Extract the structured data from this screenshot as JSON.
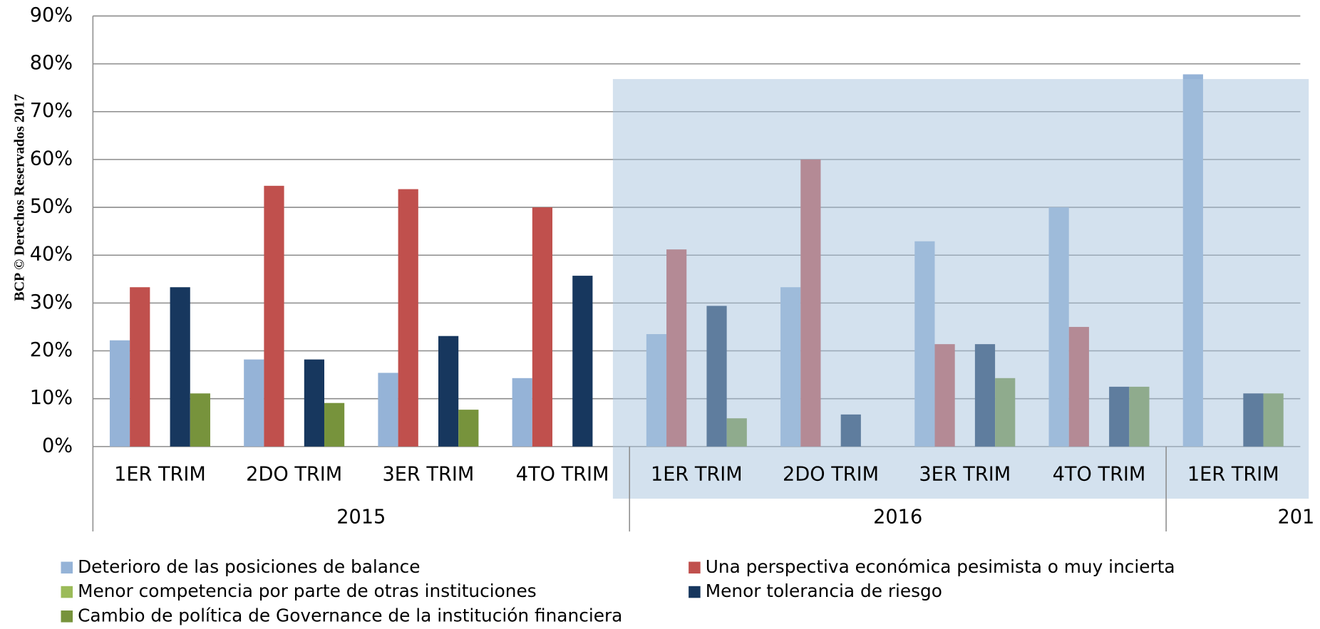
{
  "chart_data": {
    "type": "bar",
    "annotation": "BCP © Derechos Reservados 2017",
    "categories": [
      "1ER TRIM",
      "2DO TRIM",
      "3ER TRIM",
      "4TO TRIM",
      "1ER TRIM",
      "2DO TRIM",
      "3ER TRIM",
      "4TO TRIM",
      "1ER TRIM"
    ],
    "category_groups": [
      "2015",
      "2016",
      "201"
    ],
    "series": [
      {
        "name": "Deterioro de las posiciones de balance",
        "color": "#95b3d7",
        "values": [
          22.2,
          18.2,
          15.4,
          14.3,
          23.5,
          33.3,
          42.9,
          50,
          77.8
        ]
      },
      {
        "name": "Una perspectiva económica pesimista o muy incierta",
        "color": "#c0504d",
        "values": [
          33.3,
          54.5,
          53.8,
          50,
          41.2,
          60,
          21.4,
          25,
          0
        ]
      },
      {
        "name": "Menor competencia por parte de otras instituciones",
        "color": "#9bbb59",
        "values": [
          0,
          0,
          0,
          0,
          0,
          0,
          0,
          0,
          0
        ]
      },
      {
        "name": "Menor tolerancia de riesgo",
        "color": "#17375e",
        "values": [
          33.3,
          18.2,
          23.1,
          35.7,
          29.4,
          6.7,
          21.4,
          12.5,
          11.1
        ]
      },
      {
        "name": "Cambio de política de Governance de la institución financiera",
        "color": "#77933c",
        "values": [
          11.1,
          9.1,
          7.7,
          0,
          5.9,
          0,
          14.3,
          12.5,
          11.1
        ]
      }
    ],
    "ylim": [
      0,
      90
    ],
    "yticks": [
      {
        "value": 0,
        "label": "0%"
      },
      {
        "value": 10,
        "label": "10%"
      },
      {
        "value": 20,
        "label": "20%"
      },
      {
        "value": 30,
        "label": "30%"
      },
      {
        "value": 40,
        "label": "40%"
      },
      {
        "value": 50,
        "label": "50%"
      },
      {
        "value": 60,
        "label": "60%"
      },
      {
        "value": 70,
        "label": "70%"
      },
      {
        "value": 80,
        "label": "80%"
      },
      {
        "value": 90,
        "label": "90%"
      }
    ],
    "grid": true,
    "legend": "bottom"
  }
}
